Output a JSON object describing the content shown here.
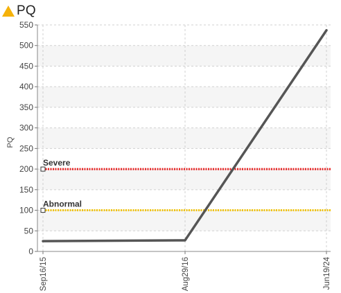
{
  "header": {
    "title": "PQ",
    "icon": "warning-triangle-icon",
    "icon_color": "#f5b20a"
  },
  "colors": {
    "series": "#555555",
    "severe": "#e82020",
    "abnormal": "#f2c40c",
    "band": "#f5f5f5",
    "grid": "#d0d0d0"
  },
  "chart_data": {
    "type": "line",
    "title": "PQ",
    "xlabel": "",
    "ylabel": "PQ",
    "x": [
      "Sep16/15",
      "Aug29/16",
      "Jun19/24"
    ],
    "series": [
      {
        "values": [
          25,
          27,
          537
        ]
      }
    ],
    "ylim": [
      0,
      550
    ],
    "yticks": [
      0,
      50,
      100,
      150,
      200,
      250,
      300,
      350,
      400,
      450,
      500,
      550
    ],
    "reference_lines": [
      {
        "label": "Severe",
        "value": 200,
        "color": "#e82020"
      },
      {
        "label": "Abnormal",
        "value": 100,
        "color": "#f2c40c"
      }
    ],
    "grid": true,
    "legend": "none"
  }
}
